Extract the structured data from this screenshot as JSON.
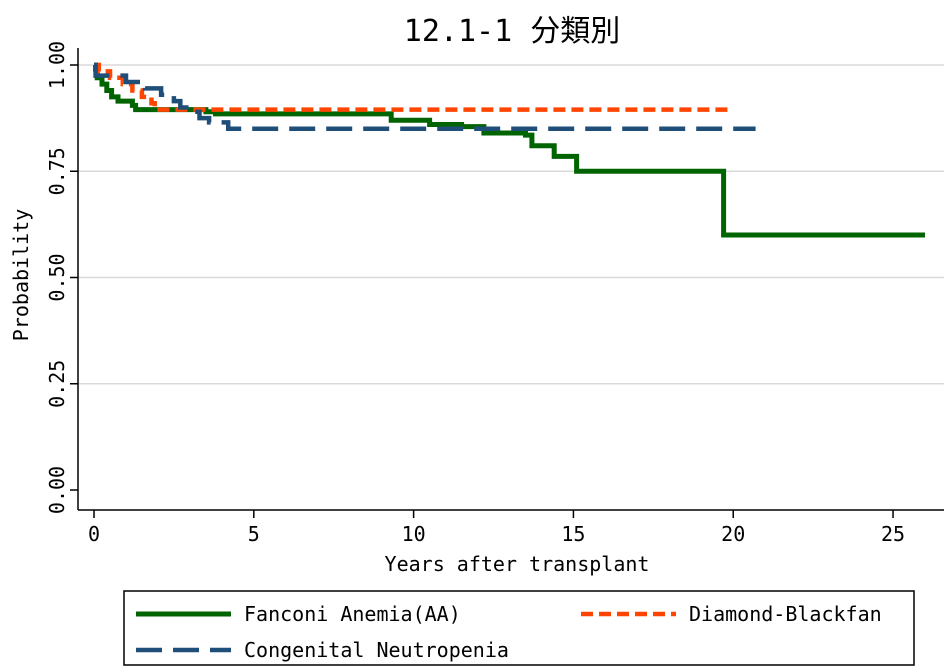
{
  "chart_data": {
    "type": "line",
    "step": true,
    "title": "12.1-1 分類別",
    "xlabel": "Years after transplant",
    "ylabel": "Probability",
    "xlim": [
      0,
      26
    ],
    "ylim": [
      0,
      1
    ],
    "x_ticks": [
      0,
      5,
      10,
      15,
      20,
      25
    ],
    "y_ticks": [
      0,
      0.25,
      0.5,
      0.75,
      1
    ],
    "x_tick_labels": [
      "0",
      "5",
      "10",
      "15",
      "20",
      "25"
    ],
    "y_tick_labels": [
      "0.00",
      "0.25",
      "0.50",
      "0.75",
      "1.00"
    ],
    "grid": true,
    "legend_position": "bottom",
    "series": [
      {
        "name": "Fanconi Anemia(AA)",
        "color": "#006400",
        "dash": "solid",
        "points": [
          [
            0,
            1.0
          ],
          [
            0.05,
            0.99
          ],
          [
            0.1,
            0.97
          ],
          [
            0.25,
            0.955
          ],
          [
            0.4,
            0.94
          ],
          [
            0.55,
            0.925
          ],
          [
            0.75,
            0.915
          ],
          [
            1.2,
            0.905
          ],
          [
            1.3,
            0.895
          ],
          [
            3.5,
            0.89
          ],
          [
            3.8,
            0.885
          ],
          [
            8.5,
            0.885
          ],
          [
            9.3,
            0.87
          ],
          [
            10.5,
            0.86
          ],
          [
            11.5,
            0.855
          ],
          [
            12.2,
            0.84
          ],
          [
            13.5,
            0.835
          ],
          [
            13.7,
            0.81
          ],
          [
            14.4,
            0.785
          ],
          [
            15.1,
            0.75
          ],
          [
            19.7,
            0.6
          ],
          [
            26,
            0.6
          ]
        ]
      },
      {
        "name": "Diamond-Blackfan",
        "color": "#ff4500",
        "dash": "short",
        "points": [
          [
            0,
            1.0
          ],
          [
            0.15,
            0.985
          ],
          [
            0.5,
            0.97
          ],
          [
            0.9,
            0.955
          ],
          [
            1.2,
            0.94
          ],
          [
            1.5,
            0.925
          ],
          [
            1.8,
            0.91
          ],
          [
            1.9,
            0.895
          ],
          [
            19.9,
            0.895
          ]
        ]
      },
      {
        "name": "Congenital Neutropenia",
        "color": "#1f4e79",
        "dash": "long",
        "points": [
          [
            0,
            1.0
          ],
          [
            0.05,
            0.975
          ],
          [
            1.0,
            0.96
          ],
          [
            1.6,
            0.945
          ],
          [
            2.1,
            0.93
          ],
          [
            2.5,
            0.915
          ],
          [
            2.7,
            0.9
          ],
          [
            3.1,
            0.89
          ],
          [
            3.3,
            0.875
          ],
          [
            3.6,
            0.865
          ],
          [
            4.2,
            0.85
          ],
          [
            20.7,
            0.85
          ]
        ]
      }
    ]
  }
}
